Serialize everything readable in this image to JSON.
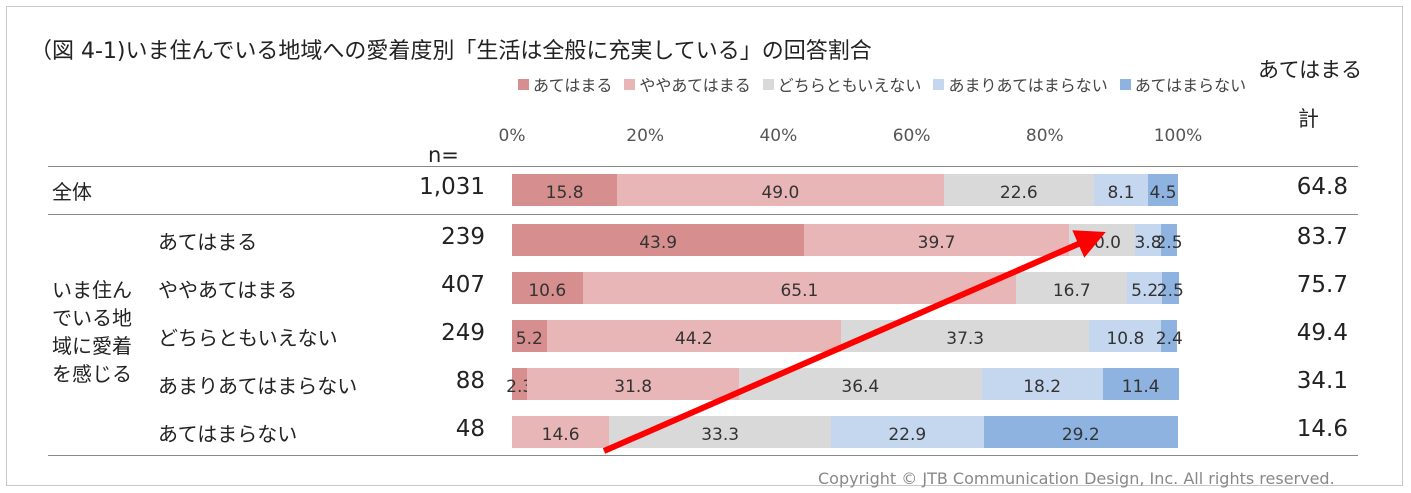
{
  "chart_data": {
    "type": "bar",
    "orientation": "horizontal",
    "stacked": "percent",
    "title": "（図 4-1)いま住んでいる地域への愛着度別「生活は全般に充実している」の回答割合",
    "n_header": "n=",
    "total_header": [
      "あてはまる",
      "計"
    ],
    "x_ticks": [
      "0%",
      "20%",
      "40%",
      "60%",
      "80%",
      "100%"
    ],
    "xlim": [
      0,
      100
    ],
    "group_label": "いま住んでいる地域に愛着を感じる",
    "series": [
      {
        "name": "あてはまる",
        "color": "#d68e8e"
      },
      {
        "name": "ややあてはまる",
        "color": "#e8b6b6"
      },
      {
        "name": "どちらともいえない",
        "color": "#d9d9d9"
      },
      {
        "name": "あまりあてはまらない",
        "color": "#c5d7ef"
      },
      {
        "name": "あてはまらない",
        "color": "#8eb3e0"
      }
    ],
    "rows": [
      {
        "label": "全体",
        "n": "1,031",
        "values": [
          15.8,
          49.0,
          22.6,
          8.1,
          4.5
        ],
        "value_labels": [
          "15.8",
          "49.0",
          "22.6",
          "8.1",
          "4.5"
        ],
        "total": "64.8"
      },
      {
        "label": "あてはまる",
        "n": "239",
        "values": [
          43.9,
          39.7,
          10.0,
          3.8,
          2.5
        ],
        "value_labels": [
          "43.9",
          "39.7",
          "10.0",
          "3.8",
          "2.5"
        ],
        "total": "83.7"
      },
      {
        "label": "ややあてはまる",
        "n": "407",
        "values": [
          10.6,
          65.1,
          16.7,
          5.2,
          2.5
        ],
        "value_labels": [
          "10.6",
          "65.1",
          "16.7",
          "5.2",
          "2.5"
        ],
        "total": "75.7"
      },
      {
        "label": "どちらともいえない",
        "n": "249",
        "values": [
          5.2,
          44.2,
          37.3,
          10.8,
          2.4
        ],
        "value_labels": [
          "5.2",
          "44.2",
          "37.3",
          "10.8",
          "2.4"
        ],
        "total": "49.4"
      },
      {
        "label": "あまりあてはまらない",
        "n": "88",
        "values": [
          2.3,
          31.8,
          36.4,
          18.2,
          11.4
        ],
        "value_labels": [
          "2.3",
          "31.8",
          "36.4",
          "18.2",
          "11.4"
        ],
        "total": "34.1"
      },
      {
        "label": "あてはまらない",
        "n": "48",
        "values": [
          0,
          14.6,
          33.3,
          22.9,
          29.2
        ],
        "value_labels": [
          "",
          "14.6",
          "33.3",
          "22.9",
          "29.2"
        ],
        "total": "14.6"
      }
    ],
    "annotation": {
      "type": "arrow",
      "color": "#ff0000",
      "from_row": "あてはまらない",
      "to_row": "あてはまる"
    }
  },
  "footer": {
    "copyright": "Copyright © JTB Communication Design, Inc. All rights reserved."
  }
}
